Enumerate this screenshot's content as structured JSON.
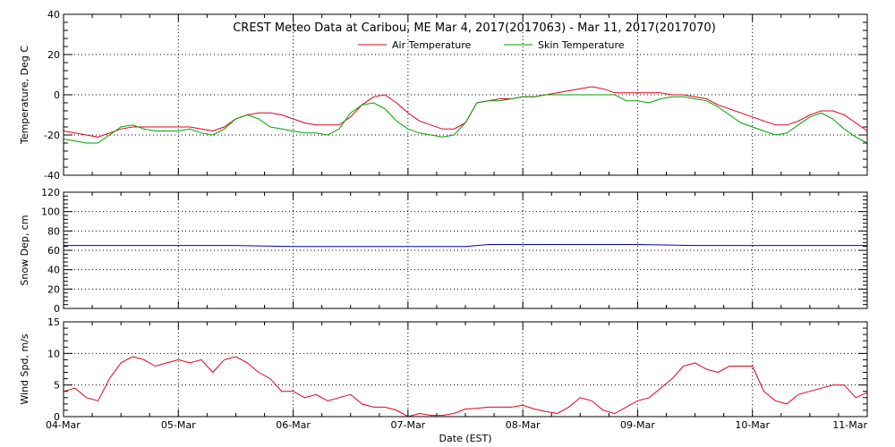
{
  "chart_data": [
    {
      "type": "line",
      "title": "CREST Meteo Data at Caribou, ME   Mar  4, 2017(2017063) - Mar 11, 2017(2017070)",
      "xlabel": "",
      "ylabel": "Temperature, Deg C",
      "ylim": [
        -40,
        40
      ],
      "yticks": [
        -40,
        -20,
        0,
        20,
        40
      ],
      "xlim": [
        0,
        7
      ],
      "grid": true,
      "legend_position": "top-center",
      "series": [
        {
          "name": "Air Temperature",
          "color": "#e0001b",
          "x": [
            0,
            0.1,
            0.2,
            0.3,
            0.4,
            0.5,
            0.6,
            0.7,
            0.8,
            0.9,
            1.0,
            1.1,
            1.2,
            1.3,
            1.4,
            1.5,
            1.6,
            1.7,
            1.8,
            1.9,
            2.0,
            2.1,
            2.2,
            2.3,
            2.4,
            2.5,
            2.6,
            2.7,
            2.8,
            2.9,
            3.0,
            3.1,
            3.2,
            3.3,
            3.4,
            3.5,
            3.6,
            3.7,
            3.8,
            3.9,
            4.0,
            4.1,
            4.2,
            4.3,
            4.4,
            4.5,
            4.6,
            4.7,
            4.8,
            4.9,
            5.0,
            5.1,
            5.2,
            5.3,
            5.4,
            5.5,
            5.6,
            5.7,
            5.8,
            5.9,
            6.0,
            6.1,
            6.2,
            6.3,
            6.4,
            6.5,
            6.6,
            6.7,
            6.8,
            6.9,
            7.0
          ],
          "values": [
            -18,
            -19,
            -20,
            -21,
            -19,
            -17,
            -16,
            -16,
            -16,
            -16,
            -16,
            -16,
            -17,
            -18,
            -16,
            -12,
            -10,
            -9,
            -9,
            -10,
            -12,
            -14,
            -15,
            -15,
            -15,
            -11,
            -5,
            -1,
            0,
            -4,
            -9,
            -13,
            -15,
            -17,
            -17,
            -14,
            -4,
            -3,
            -2,
            -2,
            -1,
            -1,
            0,
            1,
            2,
            3,
            4,
            3,
            1,
            1,
            1,
            1,
            1,
            0,
            0,
            -1,
            -2,
            -5,
            -7,
            -9,
            -11,
            -13,
            -15,
            -15,
            -13,
            -10,
            -8,
            -8,
            -10,
            -14,
            -18
          ]
        },
        {
          "name": "Skin Temperature",
          "color": "#00a000",
          "x": [
            0,
            0.1,
            0.2,
            0.3,
            0.4,
            0.5,
            0.6,
            0.7,
            0.8,
            0.9,
            1.0,
            1.1,
            1.2,
            1.3,
            1.4,
            1.5,
            1.6,
            1.7,
            1.8,
            1.9,
            2.0,
            2.1,
            2.2,
            2.3,
            2.4,
            2.5,
            2.6,
            2.7,
            2.8,
            2.9,
            3.0,
            3.1,
            3.2,
            3.3,
            3.4,
            3.5,
            3.6,
            3.7,
            3.8,
            3.9,
            4.0,
            4.1,
            4.2,
            4.3,
            4.4,
            4.5,
            4.6,
            4.7,
            4.8,
            4.9,
            5.0,
            5.1,
            5.2,
            5.3,
            5.4,
            5.5,
            5.6,
            5.7,
            5.8,
            5.9,
            6.0,
            6.1,
            6.2,
            6.3,
            6.4,
            6.5,
            6.6,
            6.7,
            6.8,
            6.9,
            7.0
          ],
          "values": [
            -22,
            -23,
            -24,
            -24,
            -20,
            -16,
            -15,
            -17,
            -18,
            -18,
            -18,
            -17,
            -19,
            -20,
            -17,
            -12,
            -10,
            -12,
            -16,
            -17,
            -18,
            -19,
            -19,
            -20,
            -17,
            -9,
            -5,
            -4,
            -7,
            -13,
            -17,
            -19,
            -20,
            -21,
            -20,
            -14,
            -4,
            -3,
            -3,
            -2,
            -1,
            -1,
            0,
            0,
            0,
            0,
            0,
            0,
            0,
            -3,
            -3,
            -4,
            -2,
            -1,
            -1,
            -2,
            -3,
            -6,
            -10,
            -14,
            -16,
            -18,
            -20,
            -19,
            -15,
            -11,
            -9,
            -12,
            -17,
            -21,
            -24
          ]
        }
      ]
    },
    {
      "type": "line",
      "title": "",
      "xlabel": "",
      "ylabel": "Snow Dep, cm",
      "ylim": [
        0,
        120
      ],
      "yticks": [
        0,
        20,
        40,
        60,
        80,
        100,
        120
      ],
      "xlim": [
        0,
        7
      ],
      "grid": true,
      "series": [
        {
          "name": "",
          "color": "#0000c8",
          "x": [
            0,
            0.5,
            1.0,
            1.5,
            2.0,
            2.5,
            3.0,
            3.2,
            3.5,
            3.7,
            4.0,
            4.5,
            5.0,
            5.5,
            6.0,
            6.5,
            7.0
          ],
          "values": [
            65,
            65,
            65,
            65,
            64,
            64,
            64,
            64,
            64,
            66,
            66,
            66,
            66,
            65,
            65,
            65,
            65
          ]
        }
      ]
    },
    {
      "type": "line",
      "title": "",
      "xlabel": "Date (EST)",
      "ylabel": "Wind Spd, m/s",
      "ylim": [
        0,
        15
      ],
      "yticks": [
        0,
        5,
        10,
        15
      ],
      "xlim": [
        0,
        7
      ],
      "grid": true,
      "categories": [
        "04-Mar",
        "05-Mar",
        "06-Mar",
        "07-Mar",
        "08-Mar",
        "09-Mar",
        "10-Mar",
        "11-Mar"
      ],
      "series": [
        {
          "name": "",
          "color": "#e0001b",
          "x": [
            0,
            0.1,
            0.2,
            0.3,
            0.4,
            0.5,
            0.6,
            0.7,
            0.8,
            0.9,
            1.0,
            1.1,
            1.2,
            1.3,
            1.4,
            1.5,
            1.6,
            1.7,
            1.8,
            1.9,
            2.0,
            2.1,
            2.2,
            2.3,
            2.4,
            2.5,
            2.6,
            2.7,
            2.8,
            2.9,
            3.0,
            3.1,
            3.2,
            3.3,
            3.4,
            3.5,
            3.6,
            3.7,
            3.8,
            3.9,
            4.0,
            4.1,
            4.2,
            4.3,
            4.4,
            4.5,
            4.6,
            4.7,
            4.8,
            4.9,
            5.0,
            5.1,
            5.2,
            5.3,
            5.4,
            5.5,
            5.6,
            5.7,
            5.8,
            5.9,
            6.0,
            6.1,
            6.2,
            6.3,
            6.4,
            6.5,
            6.6,
            6.7,
            6.8,
            6.9,
            7.0
          ],
          "values": [
            4,
            4.5,
            3,
            2.5,
            6,
            8.5,
            9.5,
            9,
            8,
            8.5,
            9,
            8.5,
            9,
            7,
            9,
            9.5,
            8.5,
            7,
            6,
            4,
            4,
            3,
            3.5,
            2.5,
            3,
            3.5,
            2,
            1.5,
            1.5,
            1,
            0,
            0.5,
            0.2,
            0.2,
            0.5,
            1.2,
            1.3,
            1.5,
            1.5,
            1.5,
            1.8,
            1.2,
            0.8,
            0.5,
            1.5,
            3,
            2.5,
            1,
            0.5,
            1.5,
            2.5,
            3,
            4.5,
            6,
            8,
            8.5,
            7.5,
            7,
            8,
            8,
            8,
            4,
            2.5,
            2,
            3.5,
            4,
            4.5,
            5,
            5,
            3,
            3.8
          ]
        }
      ]
    }
  ]
}
